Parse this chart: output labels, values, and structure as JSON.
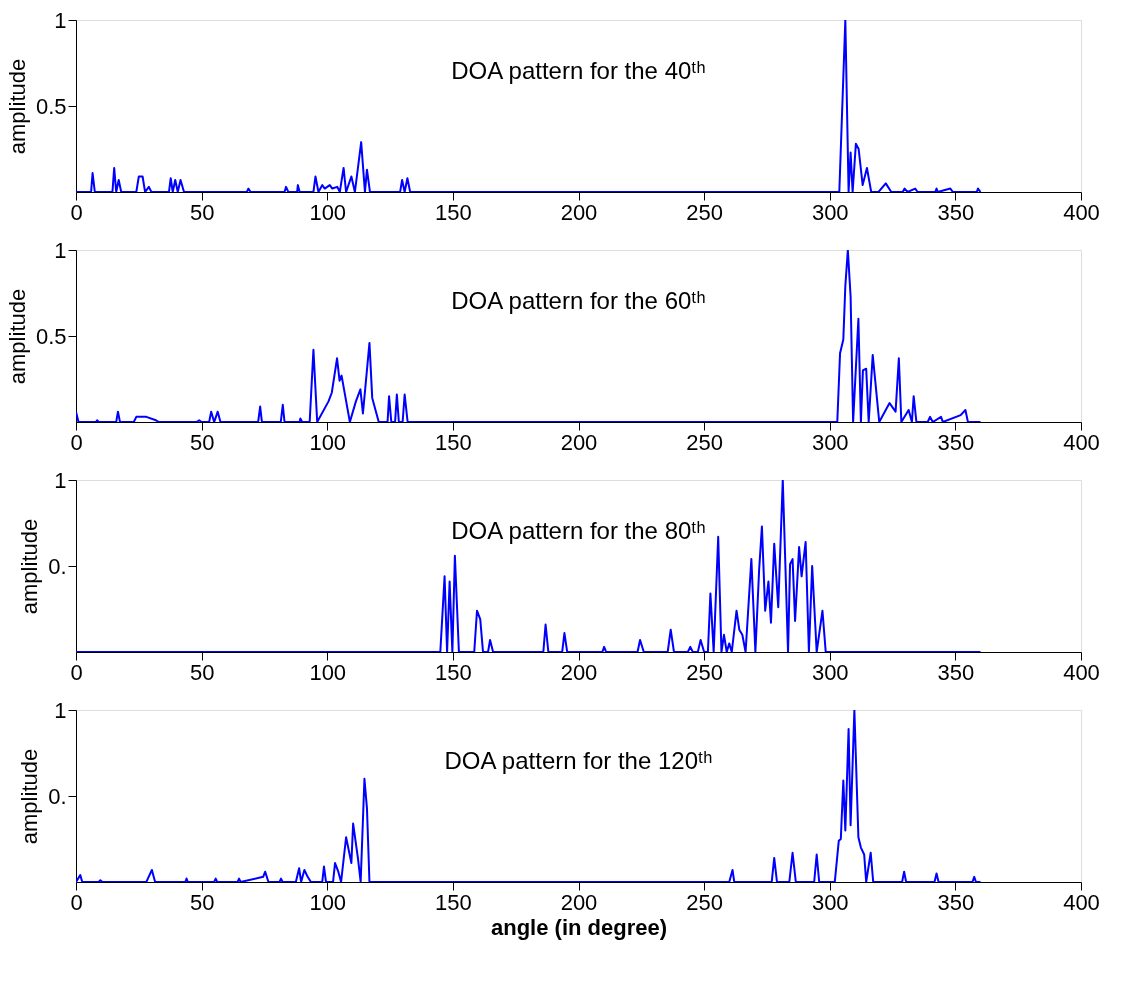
{
  "chart_data": [
    {
      "type": "line",
      "title": "DOA pattern for the 40ᵗʰ",
      "ylabel": "amplitude",
      "xlim": [
        0,
        400
      ],
      "xticks": [
        0,
        50,
        100,
        150,
        200,
        250,
        300,
        350,
        400
      ],
      "ylim": [
        0,
        1
      ],
      "yticks": [
        0.5,
        1
      ],
      "grid": false,
      "line_style": "solid",
      "marker": "none",
      "series": [
        {
          "color": "#0000ff",
          "x": [
            0,
            6,
            6.6,
            7.5,
            14.5,
            15.2,
            16,
            17,
            18,
            24,
            25,
            26.5,
            27.5,
            29,
            30,
            37,
            37.7,
            38.5,
            39.5,
            40.5,
            41.6,
            43,
            68,
            68.6,
            69.5,
            83,
            83.6,
            84.5,
            88,
            88.3,
            89,
            94.5,
            95.3,
            96.5,
            98,
            99,
            101,
            102,
            104,
            105,
            106.5,
            107.5,
            109.6,
            111,
            113.5,
            115,
            115.8,
            117,
            129,
            129.8,
            130.8,
            131.9,
            133,
            303.8,
            306.2,
            307.5,
            308.3,
            309.1,
            310.4,
            311.5,
            313.1,
            314.8,
            316.5,
            319.4,
            322.3,
            324.5,
            329,
            329.8,
            331,
            334,
            335,
            342,
            342.5,
            343,
            348,
            349,
            358.5,
            359,
            360
          ],
          "values": [
            0,
            0,
            0.11,
            0,
            0,
            0.14,
            0,
            0.07,
            0,
            0,
            0.09,
            0.09,
            0,
            0.03,
            0,
            0,
            0.08,
            0,
            0.07,
            0,
            0.07,
            0,
            0,
            0.02,
            0,
            0,
            0.03,
            0,
            0,
            0.04,
            0,
            0,
            0.09,
            0,
            0.04,
            0.02,
            0.04,
            0.02,
            0.03,
            0,
            0.14,
            0,
            0.09,
            0,
            0.29,
            0,
            0.13,
            0,
            0,
            0.07,
            0,
            0.08,
            0,
            0,
            1,
            0,
            0.23,
            0,
            0.28,
            0.25,
            0.04,
            0.14,
            0,
            0,
            0.05,
            0,
            0,
            0.02,
            0,
            0.02,
            0,
            0,
            0.02,
            0,
            0.02,
            0,
            0,
            0.02,
            0
          ]
        }
      ]
    },
    {
      "type": "line",
      "title": "DOA pattern for the 60ᵗʰ",
      "ylabel": "amplitude",
      "xlim": [
        0,
        400
      ],
      "xticks": [
        0,
        50,
        100,
        150,
        200,
        250,
        300,
        350,
        400
      ],
      "ylim": [
        0,
        1
      ],
      "yticks": [
        0.5,
        1
      ],
      "grid": false,
      "line_style": "solid",
      "marker": "none",
      "series": [
        {
          "color": "#0000ff",
          "x": [
            0,
            1,
            8,
            8.4,
            9,
            16,
            16.7,
            17.5,
            23,
            24,
            28,
            31.8,
            33,
            48,
            49,
            50,
            53,
            53.8,
            55,
            56.4,
            57.5,
            72.5,
            73.3,
            74,
            81.5,
            82.3,
            83,
            89,
            89.3,
            90,
            93,
            94.5,
            96,
            100.5,
            101.8,
            103.9,
            104.9,
            105.7,
            109,
            111.4,
            113.2,
            114.2,
            116.8,
            117.9,
            120.5,
            124,
            124.6,
            125.5,
            127,
            127.7,
            128.5,
            130,
            130.8,
            132,
            303,
            304.1,
            305.4,
            306.2,
            307.2,
            308.3,
            309.3,
            311.4,
            312.4,
            313.2,
            314.5,
            315.5,
            317.1,
            319.7,
            323.8,
            326.2,
            327.5,
            328.5,
            331.4,
            332.7,
            333.4,
            334.5,
            339,
            339.9,
            341,
            344.3,
            345,
            352.1,
            354,
            355,
            360
          ],
          "values": [
            0.06,
            0,
            0,
            0.01,
            0,
            0,
            0.06,
            0,
            0,
            0.03,
            0.03,
            0.01,
            0,
            0,
            0.01,
            0,
            0,
            0.06,
            0,
            0.06,
            0,
            0,
            0.09,
            0,
            0,
            0.1,
            0,
            0,
            0.02,
            0,
            0,
            0.42,
            0,
            0.12,
            0.17,
            0.37,
            0.24,
            0.27,
            0,
            0.12,
            0.19,
            0.05,
            0.46,
            0.14,
            0,
            0,
            0.15,
            0,
            0,
            0.16,
            0,
            0,
            0.16,
            0,
            0,
            0.4,
            0.48,
            0.79,
            1,
            0.73,
            0,
            0.6,
            0,
            0.3,
            0.31,
            0,
            0.39,
            0,
            0.11,
            0.06,
            0.37,
            0,
            0.07,
            0,
            0.15,
            0,
            0,
            0.03,
            0,
            0.03,
            0,
            0.04,
            0.07,
            0,
            0
          ]
        }
      ]
    },
    {
      "type": "line",
      "title": "DOA pattern for the 80ᵗʰ",
      "ylabel": "amplitude",
      "xlim": [
        0,
        400
      ],
      "xticks": [
        0,
        50,
        100,
        150,
        200,
        250,
        300,
        350,
        400
      ],
      "ylim": [
        0,
        1
      ],
      "yticks": [
        {
          "value": 0.5,
          "label": "0."
        },
        1
      ],
      "grid": false,
      "line_style": "solid",
      "marker": "none",
      "series": [
        {
          "color": "#0000ff",
          "x": [
            0,
            145,
            146.7,
            147.7,
            148.7,
            149.8,
            150.8,
            152.4,
            158.5,
            159.6,
            160.9,
            162,
            164,
            164.8,
            166,
            186,
            186.9,
            188,
            193.5,
            194.4,
            195.5,
            209.5,
            210.2,
            211,
            223.5,
            224.5,
            226,
            235.5,
            236.7,
            238,
            243.5,
            244.5,
            245.5,
            247.5,
            248.6,
            250,
            251.5,
            252.5,
            253.8,
            255.6,
            256.9,
            257.9,
            259,
            260,
            261,
            262.9,
            264,
            265.2,
            266.5,
            268.8,
            270.4,
            271.9,
            273,
            274.3,
            275.6,
            276.6,
            277.9,
            279.5,
            281.3,
            283.4,
            284.2,
            285.2,
            286.2,
            287.8,
            288.8,
            290.4,
            291.7,
            293,
            294.8,
            297.1,
            298.4,
            360
          ],
          "values": [
            0,
            0,
            0.44,
            0,
            0.41,
            0,
            0.56,
            0,
            0,
            0.24,
            0.19,
            0,
            0,
            0.07,
            0,
            0,
            0.16,
            0,
            0,
            0.11,
            0,
            0,
            0.03,
            0,
            0,
            0.07,
            0,
            0,
            0.13,
            0,
            0,
            0.03,
            0,
            0,
            0.07,
            0,
            0,
            0.34,
            0,
            0.67,
            0,
            0.1,
            0,
            0.05,
            0,
            0.24,
            0.13,
            0.1,
            0,
            0.54,
            0,
            0.48,
            0.73,
            0.24,
            0.41,
            0.17,
            0.63,
            0.26,
            1,
            0,
            0.51,
            0.54,
            0.18,
            0.61,
            0.44,
            0.64,
            0,
            0.5,
            0,
            0.24,
            0,
            0
          ]
        }
      ]
    },
    {
      "type": "line",
      "title": "DOA pattern for the 120ᵗʰ",
      "xlabel": "angle (in degree)",
      "ylabel": "amplitude",
      "xlim": [
        0,
        400
      ],
      "xticks": [
        0,
        50,
        100,
        150,
        200,
        250,
        300,
        350,
        400
      ],
      "ylim": [
        0,
        1
      ],
      "yticks": [
        {
          "value": 0.5,
          "label": "0."
        },
        1
      ],
      "grid": false,
      "line_style": "solid",
      "marker": "none",
      "series": [
        {
          "color": "#0000ff",
          "x": [
            0,
            1.7,
            2.5,
            9,
            9.7,
            10.5,
            28,
            28.6,
            30.2,
            31.5,
            43.5,
            44,
            44.5,
            55,
            55.6,
            56.2,
            64.3,
            64.9,
            65.5,
            74.5,
            75.3,
            76.6,
            78,
            81,
            81.6,
            82.2,
            87.5,
            88.8,
            89.6,
            90.9,
            92.2,
            93.5,
            98,
            98.7,
            99.5,
            102.3,
            103.1,
            104.4,
            105.5,
            107.5,
            109.6,
            110.3,
            112.2,
            113.3,
            114.8,
            115.8,
            116.8,
            260,
            261.3,
            262,
            276.9,
            277.9,
            279,
            283.9,
            285.2,
            286.5,
            293.8,
            294.8,
            295.8,
            302,
            303.6,
            304.4,
            305.4,
            306.2,
            307.5,
            308.3,
            309.8,
            311.4,
            312.4,
            313.7,
            314.5,
            316.3,
            317.3,
            328.8,
            329.6,
            330.4,
            341.7,
            342.5,
            343.3,
            356.8,
            357.5,
            358.2,
            360
          ],
          "values": [
            0,
            0.04,
            0,
            0,
            0.01,
            0,
            0,
            0.02,
            0.07,
            0,
            0,
            0.02,
            0,
            0,
            0.02,
            0,
            0,
            0.02,
            0,
            0.03,
            0.06,
            0,
            0,
            0,
            0.02,
            0,
            0,
            0.08,
            0,
            0.07,
            0.03,
            0,
            0,
            0.09,
            0,
            0,
            0.11,
            0.06,
            0,
            0.26,
            0.11,
            0.34,
            0.14,
            0,
            0.6,
            0.43,
            0,
            0,
            0.07,
            0,
            0,
            0.14,
            0,
            0,
            0.17,
            0,
            0,
            0.16,
            0,
            0,
            0.24,
            0.25,
            0.59,
            0.3,
            0.89,
            0.33,
            1,
            0.26,
            0.2,
            0.16,
            0,
            0.17,
            0,
            0,
            0.06,
            0,
            0,
            0.05,
            0,
            0,
            0.03,
            0,
            0
          ]
        }
      ]
    }
  ]
}
